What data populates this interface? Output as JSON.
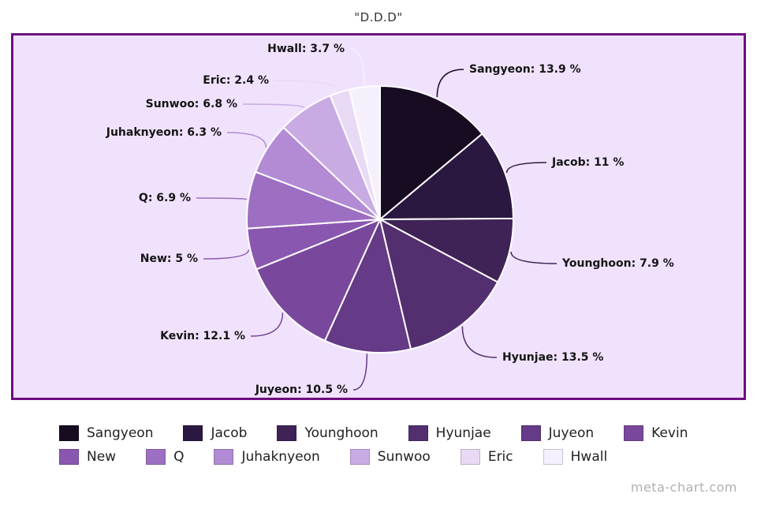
{
  "page": {
    "title": "\"D.D.D\"",
    "watermark": "meta-chart.com"
  },
  "chart_data": {
    "type": "pie",
    "title": "\"D.D.D\"",
    "unit": "%",
    "legend_position": "bottom",
    "start_angle_deg": 0,
    "direction": "clockwise",
    "frame": {
      "border_color": "#6e0d80",
      "background_color": "#f0e2fc"
    },
    "slices": [
      {
        "label": "Sangyeon",
        "value": 13.9,
        "display": "Sangyeon: 13.9 %",
        "color": "#170c22"
      },
      {
        "label": "Jacob",
        "value": 11,
        "display": "Jacob: 11 %",
        "color": "#2b1840"
      },
      {
        "label": "Younghoon",
        "value": 7.9,
        "display": "Younghoon: 7.9 %",
        "color": "#3f2357"
      },
      {
        "label": "Hyunjae",
        "value": 13.5,
        "display": "Hyunjae: 13.5 %",
        "color": "#532f6f"
      },
      {
        "label": "Juyeon",
        "value": 10.5,
        "display": "Juyeon: 10.5 %",
        "color": "#653a86"
      },
      {
        "label": "Kevin",
        "value": 12.1,
        "display": "Kevin: 12.1 %",
        "color": "#79489c"
      },
      {
        "label": "New",
        "value": 5,
        "display": "New: 5 %",
        "color": "#8a57b0"
      },
      {
        "label": "Q",
        "value": 6.9,
        "display": "Q: 6.9 %",
        "color": "#9d6fc2"
      },
      {
        "label": "Juhaknyeon",
        "value": 6.3,
        "display": "Juhaknyeon: 6.3 %",
        "color": "#b28bd4"
      },
      {
        "label": "Sunwoo",
        "value": 6.8,
        "display": "Sunwoo: 6.8 %",
        "color": "#c9abe4"
      },
      {
        "label": "Eric",
        "value": 2.4,
        "display": "Eric: 2.4 %",
        "color": "#e8daf5"
      },
      {
        "label": "Hwall",
        "value": 3.7,
        "display": "Hwall: 3.7 %",
        "color": "#f6f0fc"
      }
    ]
  }
}
